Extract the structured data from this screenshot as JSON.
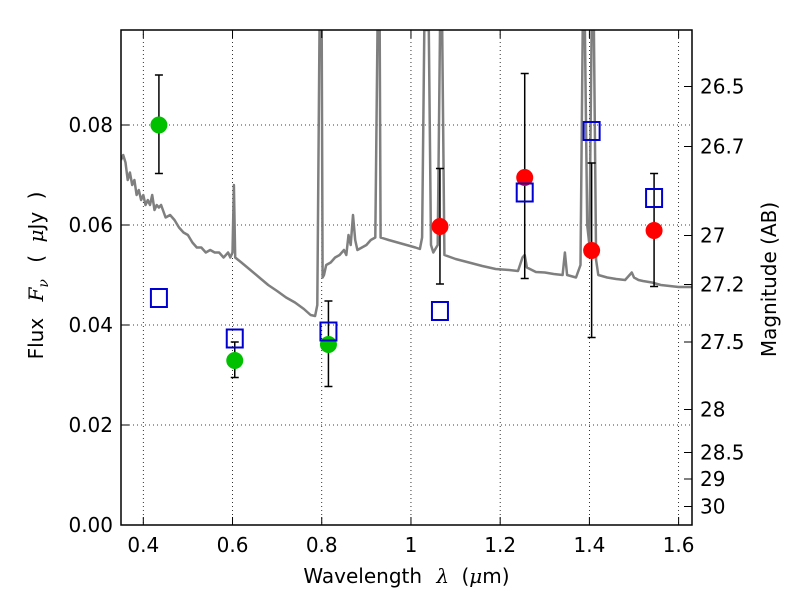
{
  "chart_data": {
    "type": "scatter",
    "xlabel": {
      "prefix": "Wavelength",
      "symbol": "λ",
      "unit_open": "(",
      "unit_mu": "μ",
      "unit_rest": "m)"
    },
    "ylabel": {
      "prefix": "Flux",
      "symbol": "F",
      "sub": "ν",
      "unit_open": "(",
      "unit_mu": "μ",
      "unit_rest": "Jy",
      "unit_close": ")"
    },
    "y2label": "Magnitude (AB)",
    "xlim": [
      0.35,
      1.63
    ],
    "ylim": [
      0.0,
      0.099
    ],
    "grid": true,
    "xticks": [
      {
        "value": 0.4,
        "label": "0.4"
      },
      {
        "value": 0.6,
        "label": "0.6"
      },
      {
        "value": 0.8,
        "label": "0.8"
      },
      {
        "value": 1.0,
        "label": "1"
      },
      {
        "value": 1.2,
        "label": "1.2"
      },
      {
        "value": 1.4,
        "label": "1.4"
      },
      {
        "value": 1.6,
        "label": "1.6"
      }
    ],
    "yticks": [
      {
        "value": 0.0,
        "label": "0.00"
      },
      {
        "value": 0.02,
        "label": "0.02"
      },
      {
        "value": 0.04,
        "label": "0.04"
      },
      {
        "value": 0.06,
        "label": "0.06"
      },
      {
        "value": 0.08,
        "label": "0.08"
      }
    ],
    "y2ticks": [
      {
        "flux": 0.0877,
        "label": "26.5"
      },
      {
        "flux": 0.0757,
        "label": "26.7"
      },
      {
        "flux": 0.0579,
        "label": "27"
      },
      {
        "flux": 0.0481,
        "label": "27.2"
      },
      {
        "flux": 0.0366,
        "label": "27.5"
      },
      {
        "flux": 0.0231,
        "label": "28"
      },
      {
        "flux": 0.0145,
        "label": "28.5"
      },
      {
        "flux": 0.0092,
        "label": "29"
      },
      {
        "flux": 0.0037,
        "label": "30"
      }
    ],
    "series": [
      {
        "marker": "circle",
        "color": "#00c000",
        "points": [
          {
            "x": 0.435,
            "y": 0.08,
            "ylo": 0.0703,
            "yhi": 0.09
          },
          {
            "x": 0.605,
            "y": 0.0329,
            "ylo": 0.0295,
            "yhi": 0.0366
          },
          {
            "x": 0.815,
            "y": 0.0361,
            "ylo": 0.0277,
            "yhi": 0.0448
          }
        ]
      },
      {
        "marker": "circle",
        "color": "#ff0000",
        "points": [
          {
            "x": 1.065,
            "y": 0.0597,
            "ylo": 0.0482,
            "yhi": 0.0713
          },
          {
            "x": 1.255,
            "y": 0.0695,
            "ylo": 0.0493,
            "yhi": 0.0903
          },
          {
            "x": 1.405,
            "y": 0.0549,
            "ylo": 0.0375,
            "yhi": 0.0724
          },
          {
            "x": 1.545,
            "y": 0.0589,
            "ylo": 0.0477,
            "yhi": 0.0703
          }
        ]
      },
      {
        "marker": "open-square",
        "color": "#0000d0",
        "points": [
          {
            "x": 0.435,
            "y": 0.0454
          },
          {
            "x": 0.605,
            "y": 0.0373
          },
          {
            "x": 0.815,
            "y": 0.0387
          },
          {
            "x": 1.065,
            "y": 0.0428
          },
          {
            "x": 1.255,
            "y": 0.0665
          },
          {
            "x": 1.405,
            "y": 0.0788
          },
          {
            "x": 1.545,
            "y": 0.0654
          }
        ]
      }
    ],
    "spectrum": {
      "color": "#7f7f7f",
      "points": [
        [
          0.35,
          0.073
        ],
        [
          0.355,
          0.074
        ],
        [
          0.36,
          0.0725
        ],
        [
          0.365,
          0.069
        ],
        [
          0.37,
          0.0705
        ],
        [
          0.375,
          0.068
        ],
        [
          0.38,
          0.069
        ],
        [
          0.385,
          0.066
        ],
        [
          0.39,
          0.067
        ],
        [
          0.395,
          0.065
        ],
        [
          0.4,
          0.066
        ],
        [
          0.405,
          0.064
        ],
        [
          0.41,
          0.065
        ],
        [
          0.415,
          0.064
        ],
        [
          0.42,
          0.066
        ],
        [
          0.425,
          0.063
        ],
        [
          0.43,
          0.064
        ],
        [
          0.435,
          0.0635
        ],
        [
          0.44,
          0.064
        ],
        [
          0.45,
          0.0615
        ],
        [
          0.46,
          0.062
        ],
        [
          0.47,
          0.061
        ],
        [
          0.48,
          0.0595
        ],
        [
          0.49,
          0.0585
        ],
        [
          0.5,
          0.058
        ],
        [
          0.51,
          0.0565
        ],
        [
          0.52,
          0.0555
        ],
        [
          0.53,
          0.0555
        ],
        [
          0.54,
          0.0545
        ],
        [
          0.55,
          0.055
        ],
        [
          0.56,
          0.0545
        ],
        [
          0.57,
          0.0545
        ],
        [
          0.58,
          0.0535
        ],
        [
          0.59,
          0.0545
        ],
        [
          0.595,
          0.0535
        ],
        [
          0.6,
          0.0545
        ],
        [
          0.603,
          0.068
        ],
        [
          0.606,
          0.0535
        ],
        [
          0.62,
          0.0525
        ],
        [
          0.64,
          0.051
        ],
        [
          0.66,
          0.0495
        ],
        [
          0.68,
          0.048
        ],
        [
          0.7,
          0.0468
        ],
        [
          0.72,
          0.0455
        ],
        [
          0.74,
          0.0445
        ],
        [
          0.76,
          0.0432
        ],
        [
          0.775,
          0.042
        ],
        [
          0.785,
          0.0418
        ],
        [
          0.79,
          0.044
        ],
        [
          0.795,
          0.099
        ],
        [
          0.8,
          0.099
        ],
        [
          0.802,
          0.0495
        ],
        [
          0.805,
          0.05
        ],
        [
          0.81,
          0.052
        ],
        [
          0.82,
          0.0525
        ],
        [
          0.83,
          0.0535
        ],
        [
          0.84,
          0.054
        ],
        [
          0.85,
          0.055
        ],
        [
          0.855,
          0.054
        ],
        [
          0.86,
          0.058
        ],
        [
          0.865,
          0.056
        ],
        [
          0.87,
          0.062
        ],
        [
          0.875,
          0.057
        ],
        [
          0.88,
          0.055
        ],
        [
          0.89,
          0.0555
        ],
        [
          0.9,
          0.056
        ],
        [
          0.91,
          0.057
        ],
        [
          0.92,
          0.0575
        ],
        [
          0.925,
          0.099
        ],
        [
          0.93,
          0.099
        ],
        [
          0.932,
          0.0575
        ],
        [
          0.95,
          0.057
        ],
        [
          0.97,
          0.0565
        ],
        [
          0.99,
          0.056
        ],
        [
          1.01,
          0.0555
        ],
        [
          1.02,
          0.0552
        ],
        [
          1.025,
          0.0575
        ],
        [
          1.03,
          0.099
        ],
        [
          1.04,
          0.099
        ],
        [
          1.045,
          0.056
        ],
        [
          1.05,
          0.0545
        ],
        [
          1.06,
          0.056
        ],
        [
          1.065,
          0.099
        ],
        [
          1.07,
          0.099
        ],
        [
          1.075,
          0.054
        ],
        [
          1.1,
          0.0532
        ],
        [
          1.13,
          0.0525
        ],
        [
          1.16,
          0.0518
        ],
        [
          1.19,
          0.0512
        ],
        [
          1.22,
          0.051
        ],
        [
          1.24,
          0.0508
        ],
        [
          1.25,
          0.0535
        ],
        [
          1.255,
          0.054
        ],
        [
          1.26,
          0.0515
        ],
        [
          1.28,
          0.0506
        ],
        [
          1.3,
          0.0505
        ],
        [
          1.32,
          0.0502
        ],
        [
          1.34,
          0.05
        ],
        [
          1.345,
          0.0545
        ],
        [
          1.35,
          0.05
        ],
        [
          1.37,
          0.0495
        ],
        [
          1.38,
          0.052
        ],
        [
          1.385,
          0.099
        ],
        [
          1.39,
          0.099
        ],
        [
          1.395,
          0.06
        ],
        [
          1.4,
          0.056
        ],
        [
          1.405,
          0.099
        ],
        [
          1.41,
          0.099
        ],
        [
          1.415,
          0.053
        ],
        [
          1.42,
          0.05
        ],
        [
          1.44,
          0.0495
        ],
        [
          1.46,
          0.0492
        ],
        [
          1.48,
          0.049
        ],
        [
          1.495,
          0.0505
        ],
        [
          1.5,
          0.0495
        ],
        [
          1.51,
          0.049
        ],
        [
          1.52,
          0.0488
        ],
        [
          1.54,
          0.0485
        ],
        [
          1.56,
          0.048
        ],
        [
          1.58,
          0.0478
        ],
        [
          1.6,
          0.0476
        ],
        [
          1.63,
          0.0476
        ]
      ]
    }
  }
}
